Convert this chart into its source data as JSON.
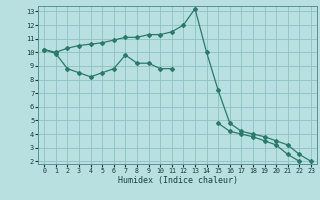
{
  "xlabel": "Humidex (Indice chaleur)",
  "bg_color": "#b8e0e0",
  "grid_color": "#90c0c0",
  "line_color": "#2a7a6a",
  "series1_x": [
    0,
    1,
    2,
    3,
    4,
    5,
    6,
    7,
    8,
    9,
    10,
    11,
    12,
    13,
    14,
    15,
    16,
    17,
    18,
    19,
    20,
    21,
    22,
    23
  ],
  "series1_y": [
    10.2,
    10.0,
    10.3,
    10.5,
    10.6,
    10.7,
    10.9,
    11.1,
    11.1,
    11.3,
    11.3,
    11.5,
    12.0,
    13.2,
    10.0,
    7.2,
    4.8,
    4.2,
    4.0,
    3.8,
    3.5,
    3.2,
    2.5,
    2.0
  ],
  "series2_x": [
    0,
    1,
    2,
    3,
    4,
    5,
    6,
    7,
    8,
    9,
    10,
    11,
    15,
    16,
    17,
    18,
    19,
    20,
    21,
    22
  ],
  "series2_y": [
    10.2,
    9.9,
    8.8,
    8.5,
    8.2,
    8.5,
    8.8,
    9.8,
    9.2,
    9.2,
    8.8,
    8.8,
    4.8,
    4.2,
    4.0,
    3.8,
    3.5,
    3.2,
    2.5,
    2.0
  ],
  "xlim": [
    -0.5,
    23.5
  ],
  "ylim": [
    1.8,
    13.4
  ],
  "xticks": [
    0,
    1,
    2,
    3,
    4,
    5,
    6,
    7,
    8,
    9,
    10,
    11,
    12,
    13,
    14,
    15,
    16,
    17,
    18,
    19,
    20,
    21,
    22,
    23
  ],
  "yticks": [
    2,
    3,
    4,
    5,
    6,
    7,
    8,
    9,
    10,
    11,
    12,
    13
  ]
}
